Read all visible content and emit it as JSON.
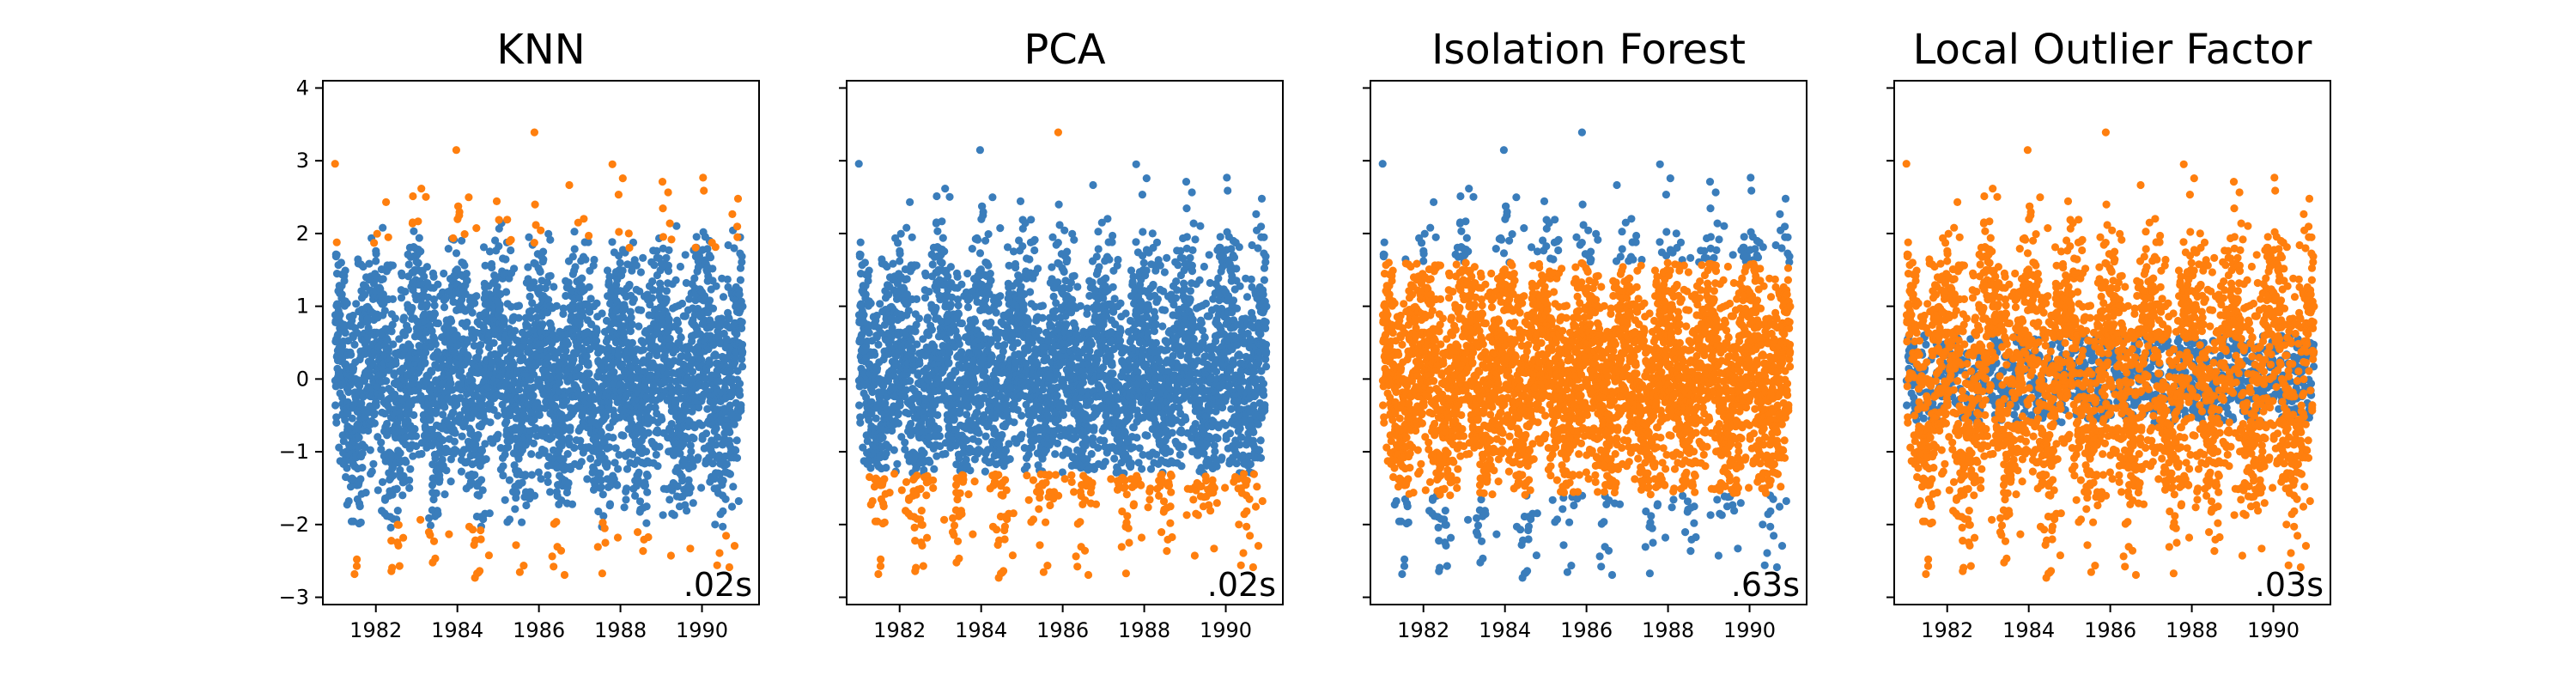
{
  "colors": {
    "inlier": "#3a7dbb",
    "outlier": "#ff7f0e"
  },
  "chart_data": [
    {
      "type": "scatter",
      "title": "KNN",
      "timing": ".02s",
      "xlabel": "",
      "ylabel": "",
      "xlim": [
        1980.7,
        1991.4
      ],
      "ylim": [
        -3.1,
        4.1
      ],
      "xticks": [
        {
          "value": 1982,
          "label": "1982"
        },
        {
          "value": 1984,
          "label": "1984"
        },
        {
          "value": 1986,
          "label": "1986"
        },
        {
          "value": 1988,
          "label": "1988"
        },
        {
          "value": 1990,
          "label": "1990"
        }
      ],
      "yticks": [
        {
          "value": 4,
          "label": "4"
        },
        {
          "value": 3,
          "label": "3"
        },
        {
          "value": 2,
          "label": "2"
        },
        {
          "value": 1,
          "label": "1"
        },
        {
          "value": 0,
          "label": "0"
        },
        {
          "value": -1,
          "label": "−1"
        },
        {
          "value": -2,
          "label": "−2"
        },
        {
          "value": -3,
          "label": "−3"
        }
      ],
      "show_y_tick_labels": true,
      "x_range": [
        "1981-01",
        "1990-12"
      ],
      "series": [
        {
          "role": "inlier",
          "color": "#3a7dbb",
          "y_range": [
            -2.3,
            2.3
          ]
        },
        {
          "role": "outlier",
          "color": "#ff7f0e",
          "y_range": [
            [
              -2.75,
              -1.85
            ],
            [
              1.75,
              3.7
            ]
          ]
        }
      ]
    },
    {
      "type": "scatter",
      "title": "PCA",
      "timing": ".02s",
      "xlabel": "",
      "ylabel": "",
      "xlim": [
        1980.7,
        1991.4
      ],
      "ylim": [
        -3.1,
        4.1
      ],
      "xticks": [
        {
          "value": 1982,
          "label": "1982"
        },
        {
          "value": 1984,
          "label": "1984"
        },
        {
          "value": 1986,
          "label": "1986"
        },
        {
          "value": 1988,
          "label": "1988"
        },
        {
          "value": 1990,
          "label": "1990"
        }
      ],
      "yticks": [
        {
          "value": 4,
          "label": ""
        },
        {
          "value": 3,
          "label": ""
        },
        {
          "value": 2,
          "label": ""
        },
        {
          "value": 1,
          "label": ""
        },
        {
          "value": 0,
          "label": ""
        },
        {
          "value": -1,
          "label": ""
        },
        {
          "value": -2,
          "label": ""
        },
        {
          "value": -3,
          "label": ""
        }
      ],
      "show_y_tick_labels": false,
      "x_range": [
        "1981-01",
        "1990-12"
      ],
      "series": [
        {
          "role": "inlier",
          "color": "#3a7dbb",
          "y_range": [
            -1.3,
            3.7
          ]
        },
        {
          "role": "outlier",
          "color": "#ff7f0e",
          "y_range": [
            [
              -2.75,
              -1.3
            ],
            [
              3.3,
              3.7
            ]
          ]
        }
      ]
    },
    {
      "type": "scatter",
      "title": "Isolation Forest",
      "timing": ".63s",
      "xlabel": "",
      "ylabel": "",
      "xlim": [
        1980.7,
        1991.4
      ],
      "ylim": [
        -3.1,
        4.1
      ],
      "xticks": [
        {
          "value": 1982,
          "label": "1982"
        },
        {
          "value": 1984,
          "label": "1984"
        },
        {
          "value": 1986,
          "label": "1986"
        },
        {
          "value": 1988,
          "label": "1988"
        },
        {
          "value": 1990,
          "label": "1990"
        }
      ],
      "yticks": [
        {
          "value": 4,
          "label": ""
        },
        {
          "value": 3,
          "label": ""
        },
        {
          "value": 2,
          "label": ""
        },
        {
          "value": 1,
          "label": ""
        },
        {
          "value": 0,
          "label": ""
        },
        {
          "value": -1,
          "label": ""
        },
        {
          "value": -2,
          "label": ""
        },
        {
          "value": -3,
          "label": ""
        }
      ],
      "show_y_tick_labels": false,
      "x_range": [
        "1981-01",
        "1990-12"
      ],
      "series": [
        {
          "role": "inlier",
          "color": "#3a7dbb",
          "y_range": [
            [
              -2.75,
              -1.6
            ],
            [
              1.6,
              3.7
            ]
          ]
        },
        {
          "role": "outlier",
          "color": "#ff7f0e",
          "y_range": [
            -1.6,
            1.6
          ]
        }
      ]
    },
    {
      "type": "scatter",
      "title": "Local Outlier Factor",
      "timing": ".03s",
      "xlabel": "",
      "ylabel": "",
      "xlim": [
        1980.7,
        1991.4
      ],
      "ylim": [
        -3.1,
        4.1
      ],
      "xticks": [
        {
          "value": 1982,
          "label": "1982"
        },
        {
          "value": 1984,
          "label": "1984"
        },
        {
          "value": 1986,
          "label": "1986"
        },
        {
          "value": 1988,
          "label": "1988"
        },
        {
          "value": 1990,
          "label": "1990"
        }
      ],
      "yticks": [
        {
          "value": 4,
          "label": ""
        },
        {
          "value": 3,
          "label": ""
        },
        {
          "value": 2,
          "label": ""
        },
        {
          "value": 1,
          "label": ""
        },
        {
          "value": 0,
          "label": ""
        },
        {
          "value": -1,
          "label": ""
        },
        {
          "value": -2,
          "label": ""
        },
        {
          "value": -3,
          "label": ""
        }
      ],
      "show_y_tick_labels": false,
      "x_range": [
        "1981-01",
        "1990-12"
      ],
      "series": [
        {
          "role": "inlier",
          "color": "#3a7dbb",
          "y_range": [
            -0.6,
            0.6
          ]
        },
        {
          "role": "outlier",
          "color": "#ff7f0e",
          "y_range": [
            -2.75,
            3.7
          ]
        }
      ]
    }
  ]
}
